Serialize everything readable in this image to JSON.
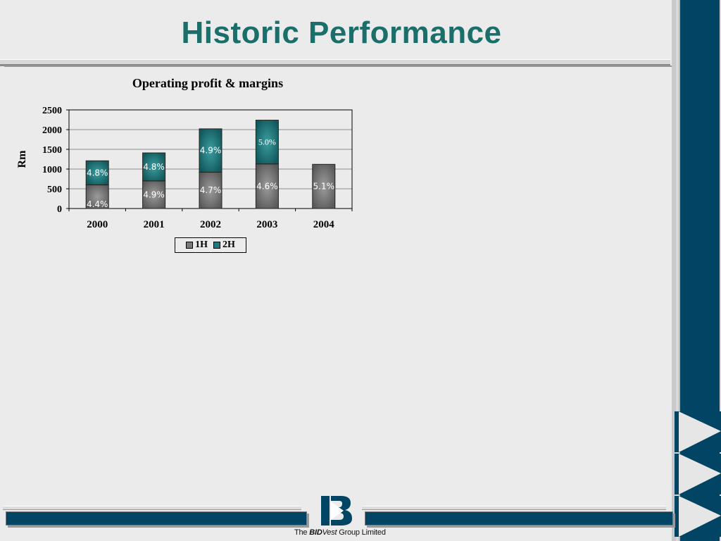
{
  "slide": {
    "title": "Historic Performance"
  },
  "footer": {
    "company_prefix": "The ",
    "company_brand_1": "BID",
    "company_brand_2": "Vest",
    "company_suffix": " Group Limited"
  },
  "colors": {
    "title": "#1a6f6b",
    "navy": "#014463",
    "series_1H": "#6e6e6e",
    "series_2H": "#1d7a7e"
  },
  "chart_data": {
    "type": "bar",
    "stacked": true,
    "title": "Operating profit & margins",
    "xlabel": "",
    "ylabel": "Rm",
    "ylim": [
      0,
      2500
    ],
    "yticks": [
      0,
      500,
      1000,
      1500,
      2000,
      2500
    ],
    "grid": true,
    "legend_placement": "bottom",
    "categories": [
      "2000",
      "2001",
      "2002",
      "2003",
      "2004"
    ],
    "series": [
      {
        "name": "1H",
        "values": [
          600,
          700,
          920,
          1130,
          1120
        ],
        "labels": [
          "4.4%",
          "4.9%",
          "4.7%",
          "4.6%",
          "5.1%"
        ]
      },
      {
        "name": "2H",
        "values": [
          610,
          710,
          1100,
          1110,
          0
        ],
        "labels": [
          "4.8%",
          "4.8%",
          "4.9%",
          "5.0%",
          ""
        ]
      }
    ]
  }
}
